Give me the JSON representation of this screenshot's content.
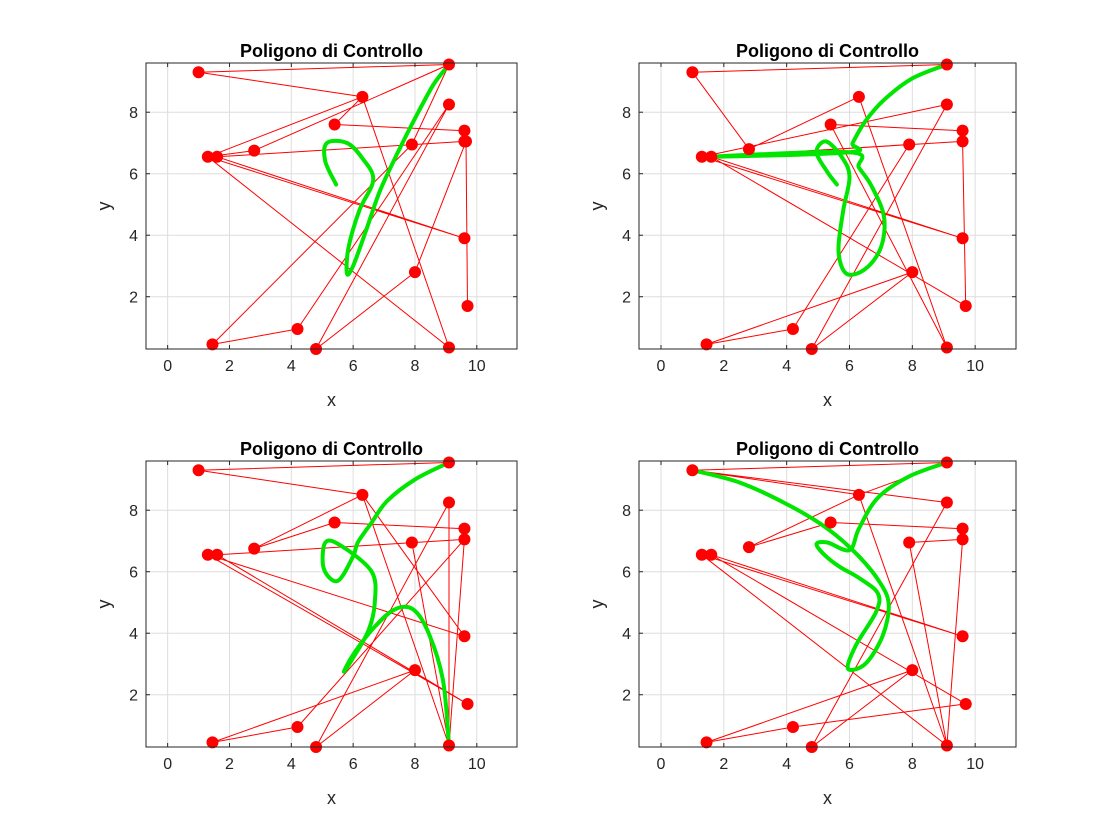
{
  "chart_data": [
    {
      "type": "line",
      "title": "Poligono di Controllo",
      "xlabel": "x",
      "ylabel": "y",
      "xlim": [
        -0.7,
        11.3
      ],
      "ylim": [
        0.3,
        9.6
      ],
      "xticks": [
        0,
        2,
        4,
        6,
        8,
        10
      ],
      "yticks": [
        2,
        4,
        6,
        8
      ],
      "grid": true,
      "series": [
        {
          "style": "polygon",
          "color": "#ff0000",
          "points": [
            [
              9.1,
              9.55
            ],
            [
              1.0,
              9.3
            ],
            [
              6.3,
              8.5
            ],
            [
              5.4,
              7.6
            ],
            [
              9.6,
              7.4
            ],
            [
              9.6,
              7.05
            ],
            [
              1.6,
              6.55
            ],
            [
              9.6,
              3.9
            ],
            [
              1.3,
              6.55
            ],
            [
              9.1,
              0.35
            ],
            [
              6.3,
              8.5
            ],
            [
              1.3,
              6.55
            ],
            [
              2.8,
              6.75
            ],
            [
              9.1,
              9.55
            ],
            [
              7.9,
              6.95
            ],
            [
              1.45,
              0.45
            ],
            [
              4.2,
              0.95
            ],
            [
              9.1,
              8.25
            ],
            [
              4.8,
              0.3
            ],
            [
              8.0,
              2.8
            ],
            [
              9.65,
              7.05
            ],
            [
              9.7,
              1.7
            ]
          ]
        },
        {
          "style": "curve",
          "color": "#00e600",
          "points": [
            [
              9.1,
              9.55
            ],
            [
              8.6,
              8.9
            ],
            [
              8.0,
              7.8
            ],
            [
              7.4,
              6.6
            ],
            [
              6.85,
              5.4
            ],
            [
              6.4,
              4.1
            ],
            [
              6.0,
              3.0
            ],
            [
              5.8,
              2.75
            ],
            [
              5.85,
              3.6
            ],
            [
              6.2,
              4.8
            ],
            [
              6.65,
              5.8
            ],
            [
              6.3,
              6.5
            ],
            [
              5.8,
              7.0
            ],
            [
              5.15,
              7.0
            ],
            [
              5.1,
              6.4
            ],
            [
              5.45,
              5.65
            ]
          ]
        }
      ]
    },
    {
      "type": "line",
      "title": "Poligono di Controllo",
      "xlabel": "x",
      "ylabel": "y",
      "xlim": [
        -0.7,
        11.3
      ],
      "ylim": [
        0.3,
        9.6
      ],
      "xticks": [
        0,
        2,
        4,
        6,
        8,
        10
      ],
      "yticks": [
        2,
        4,
        6,
        8
      ],
      "grid": true,
      "series": [
        {
          "style": "polygon",
          "color": "#ff0000",
          "points": [
            [
              9.1,
              9.55
            ],
            [
              1.0,
              9.3
            ],
            [
              2.8,
              6.8
            ],
            [
              6.3,
              8.5
            ],
            [
              9.1,
              0.35
            ],
            [
              5.4,
              7.6
            ],
            [
              9.6,
              7.4
            ],
            [
              9.6,
              7.05
            ],
            [
              9.7,
              1.7
            ],
            [
              1.6,
              6.55
            ],
            [
              9.6,
              3.9
            ],
            [
              1.3,
              6.55
            ],
            [
              9.1,
              8.25
            ],
            [
              4.8,
              0.3
            ],
            [
              8.0,
              2.8
            ],
            [
              1.45,
              0.45
            ],
            [
              4.2,
              0.95
            ],
            [
              7.9,
              6.95
            ],
            [
              1.6,
              6.55
            ],
            [
              9.6,
              7.05
            ]
          ]
        },
        {
          "style": "curve",
          "color": "#00e600",
          "points": [
            [
              9.1,
              9.55
            ],
            [
              8.0,
              9.1
            ],
            [
              7.1,
              8.4
            ],
            [
              6.5,
              7.7
            ],
            [
              6.1,
              7.0
            ],
            [
              6.0,
              6.7
            ],
            [
              1.6,
              6.55
            ],
            [
              6.0,
              6.7
            ],
            [
              6.3,
              6.2
            ],
            [
              6.7,
              5.6
            ],
            [
              7.1,
              4.6
            ],
            [
              7.0,
              3.6
            ],
            [
              6.5,
              2.9
            ],
            [
              5.9,
              2.75
            ],
            [
              5.65,
              3.5
            ],
            [
              5.8,
              4.8
            ],
            [
              6.0,
              5.9
            ],
            [
              5.75,
              6.55
            ],
            [
              5.25,
              7.05
            ],
            [
              4.95,
              6.7
            ],
            [
              5.3,
              6.05
            ],
            [
              5.6,
              5.65
            ]
          ]
        }
      ]
    },
    {
      "type": "line",
      "title": "Poligono di Controllo",
      "xlabel": "x",
      "ylabel": "y",
      "xlim": [
        -0.7,
        11.3
      ],
      "ylim": [
        0.3,
        9.6
      ],
      "xticks": [
        0,
        2,
        4,
        6,
        8,
        10
      ],
      "yticks": [
        2,
        4,
        6,
        8
      ],
      "grid": true,
      "series": [
        {
          "style": "polygon",
          "color": "#ff0000",
          "points": [
            [
              9.1,
              9.55
            ],
            [
              1.0,
              9.3
            ],
            [
              6.3,
              8.5
            ],
            [
              2.8,
              6.75
            ],
            [
              5.4,
              7.6
            ],
            [
              9.6,
              7.4
            ],
            [
              9.6,
              7.05
            ],
            [
              9.1,
              0.35
            ],
            [
              9.1,
              8.25
            ],
            [
              4.8,
              0.3
            ],
            [
              8.0,
              2.8
            ],
            [
              1.45,
              0.45
            ],
            [
              4.2,
              0.95
            ],
            [
              9.6,
              7.05
            ],
            [
              1.6,
              6.55
            ],
            [
              9.7,
              1.7
            ],
            [
              1.3,
              6.55
            ],
            [
              9.6,
              3.9
            ],
            [
              6.3,
              8.5
            ],
            [
              9.1,
              0.35
            ],
            [
              7.9,
              6.95
            ],
            [
              9.1,
              0.35
            ]
          ]
        },
        {
          "style": "curve",
          "color": "#00e600",
          "points": [
            [
              9.1,
              9.55
            ],
            [
              8.0,
              9.0
            ],
            [
              7.1,
              8.3
            ],
            [
              6.6,
              7.6
            ],
            [
              6.15,
              6.95
            ],
            [
              6.0,
              6.5
            ],
            [
              5.5,
              5.7
            ],
            [
              5.05,
              6.1
            ],
            [
              5.1,
              6.95
            ],
            [
              5.6,
              6.85
            ],
            [
              6.6,
              6.0
            ],
            [
              6.7,
              5.0
            ],
            [
              6.5,
              4.1
            ],
            [
              6.0,
              3.2
            ],
            [
              5.7,
              2.75
            ],
            [
              6.0,
              3.3
            ],
            [
              6.6,
              4.1
            ],
            [
              7.3,
              4.75
            ],
            [
              7.9,
              4.8
            ],
            [
              8.4,
              4.1
            ],
            [
              8.9,
              2.5
            ],
            [
              9.1,
              0.35
            ]
          ]
        }
      ]
    },
    {
      "type": "line",
      "title": "Poligono di Controllo",
      "xlabel": "x",
      "ylabel": "y",
      "xlim": [
        -0.7,
        11.3
      ],
      "ylim": [
        0.3,
        9.6
      ],
      "xticks": [
        0,
        2,
        4,
        6,
        8,
        10
      ],
      "yticks": [
        2,
        4,
        6,
        8
      ],
      "grid": true,
      "series": [
        {
          "style": "polygon",
          "color": "#ff0000",
          "points": [
            [
              1.0,
              9.3
            ],
            [
              9.1,
              9.55
            ],
            [
              6.3,
              8.5
            ],
            [
              2.8,
              6.8
            ],
            [
              5.4,
              7.6
            ],
            [
              9.6,
              7.4
            ],
            [
              9.6,
              7.05
            ],
            [
              9.1,
              0.35
            ],
            [
              6.3,
              8.5
            ],
            [
              1.0,
              9.3
            ],
            [
              9.1,
              8.25
            ],
            [
              4.8,
              0.3
            ],
            [
              8.0,
              2.8
            ],
            [
              1.45,
              0.45
            ],
            [
              4.2,
              0.95
            ],
            [
              9.7,
              1.7
            ],
            [
              1.6,
              6.55
            ],
            [
              9.6,
              3.9
            ],
            [
              1.3,
              6.55
            ],
            [
              9.1,
              0.35
            ],
            [
              7.9,
              6.95
            ],
            [
              9.6,
              7.05
            ]
          ]
        },
        {
          "style": "curve",
          "color": "#00e600",
          "points": [
            [
              1.0,
              9.3
            ],
            [
              2.5,
              8.9
            ],
            [
              4.0,
              8.2
            ],
            [
              5.3,
              7.4
            ],
            [
              6.3,
              6.5
            ],
            [
              7.0,
              5.6
            ],
            [
              7.25,
              4.9
            ],
            [
              7.05,
              3.9
            ],
            [
              6.5,
              3.0
            ],
            [
              5.95,
              2.85
            ],
            [
              6.2,
              3.6
            ],
            [
              6.85,
              4.7
            ],
            [
              6.9,
              5.3
            ],
            [
              6.3,
              5.8
            ],
            [
              5.7,
              6.15
            ],
            [
              5.2,
              6.55
            ],
            [
              4.95,
              6.9
            ],
            [
              5.3,
              6.95
            ],
            [
              6.0,
              6.7
            ],
            [
              6.3,
              7.4
            ],
            [
              6.9,
              8.4
            ],
            [
              7.9,
              9.1
            ],
            [
              9.1,
              9.55
            ]
          ]
        }
      ]
    }
  ]
}
